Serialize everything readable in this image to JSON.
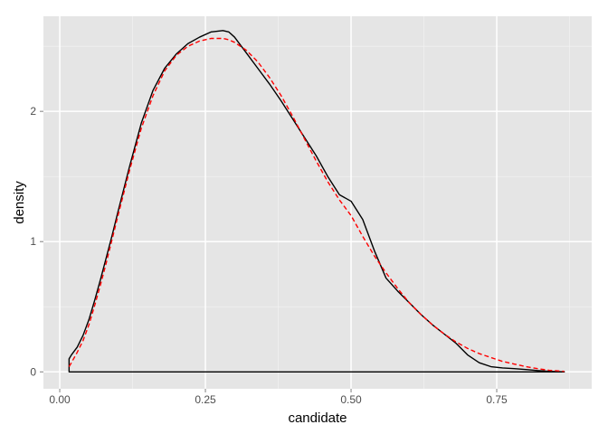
{
  "chart_data": {
    "type": "line",
    "xlabel": "candidate",
    "ylabel": "density",
    "xlim": [
      -0.028,
      0.913
    ],
    "ylim": [
      -0.13,
      2.73
    ],
    "x_ticks": [
      0.0,
      0.25,
      0.5,
      0.75
    ],
    "x_tick_labels": [
      "0.00",
      "0.25",
      "0.50",
      "0.75"
    ],
    "y_ticks": [
      0,
      1,
      2
    ],
    "y_tick_labels": [
      "0",
      "1",
      "2"
    ],
    "grid": true,
    "panel_color": "#e5e5e5",
    "series": [
      {
        "style": "solid",
        "color": "#000000",
        "closed_outline": true,
        "x": [
          0.016,
          0.02,
          0.03,
          0.04,
          0.05,
          0.06,
          0.07,
          0.08,
          0.09,
          0.1,
          0.12,
          0.14,
          0.16,
          0.18,
          0.2,
          0.22,
          0.24,
          0.26,
          0.28,
          0.29,
          0.3,
          0.32,
          0.34,
          0.36,
          0.38,
          0.4,
          0.42,
          0.44,
          0.46,
          0.48,
          0.5,
          0.52,
          0.54,
          0.56,
          0.58,
          0.6,
          0.62,
          0.64,
          0.66,
          0.68,
          0.7,
          0.72,
          0.74,
          0.76,
          0.78,
          0.8,
          0.82,
          0.84,
          0.866
        ],
        "y": [
          0.1,
          0.13,
          0.19,
          0.28,
          0.4,
          0.55,
          0.71,
          0.88,
          1.05,
          1.23,
          1.58,
          1.91,
          2.16,
          2.33,
          2.44,
          2.52,
          2.57,
          2.61,
          2.62,
          2.61,
          2.57,
          2.45,
          2.33,
          2.21,
          2.08,
          1.94,
          1.8,
          1.66,
          1.5,
          1.36,
          1.31,
          1.17,
          0.93,
          0.72,
          0.62,
          0.53,
          0.44,
          0.36,
          0.29,
          0.22,
          0.13,
          0.07,
          0.04,
          0.03,
          0.025,
          0.018,
          0.01,
          0.004,
          0.0
        ]
      },
      {
        "style": "dashed",
        "color": "#ff0000",
        "x": [
          0.016,
          0.02,
          0.03,
          0.04,
          0.05,
          0.06,
          0.07,
          0.08,
          0.09,
          0.1,
          0.12,
          0.14,
          0.16,
          0.18,
          0.2,
          0.22,
          0.24,
          0.26,
          0.28,
          0.29,
          0.3,
          0.32,
          0.34,
          0.36,
          0.38,
          0.4,
          0.42,
          0.44,
          0.46,
          0.48,
          0.5,
          0.52,
          0.54,
          0.56,
          0.58,
          0.6,
          0.62,
          0.64,
          0.66,
          0.68,
          0.7,
          0.72,
          0.74,
          0.76,
          0.78,
          0.8,
          0.82,
          0.84,
          0.866
        ],
        "y": [
          0.04,
          0.07,
          0.15,
          0.24,
          0.36,
          0.51,
          0.67,
          0.84,
          1.02,
          1.2,
          1.55,
          1.87,
          2.12,
          2.31,
          2.43,
          2.5,
          2.54,
          2.56,
          2.56,
          2.55,
          2.53,
          2.47,
          2.38,
          2.26,
          2.12,
          1.96,
          1.79,
          1.62,
          1.46,
          1.32,
          1.2,
          1.04,
          0.89,
          0.76,
          0.64,
          0.53,
          0.44,
          0.36,
          0.29,
          0.23,
          0.18,
          0.14,
          0.11,
          0.08,
          0.06,
          0.04,
          0.025,
          0.012,
          0.004
        ]
      }
    ]
  }
}
